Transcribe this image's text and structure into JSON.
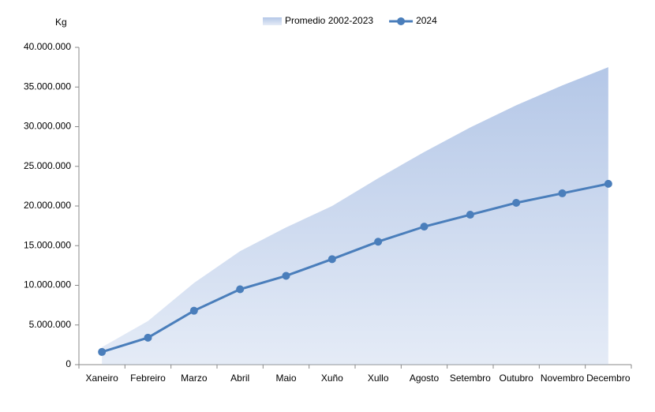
{
  "chart_data": {
    "type": "line",
    "y_label": "Kg",
    "categories": [
      "Xaneiro",
      "Febreiro",
      "Marzo",
      "Abril",
      "Maio",
      "Xuño",
      "Xullo",
      "Agosto",
      "Setembro",
      "Outubro",
      "Novembro",
      "Decembro"
    ],
    "series": [
      {
        "name": "Promedio 2002-2023",
        "type": "area",
        "color": "#b4c7e7",
        "values": [
          2200000,
          5500000,
          10300000,
          14300000,
          17300000,
          20000000,
          23500000,
          26800000,
          29900000,
          32700000,
          35200000,
          37500000
        ]
      },
      {
        "name": "2024",
        "type": "line",
        "color": "#4a7ebb",
        "values": [
          1600000,
          3400000,
          6800000,
          9500000,
          11200000,
          13300000,
          15500000,
          17400000,
          18900000,
          20400000,
          21600000,
          22800000
        ]
      }
    ],
    "ylim": [
      0,
      40000000
    ],
    "yticks": [
      0,
      {
        "value": 5000000,
        "label": "5.000.000"
      },
      {
        "value": 10000000,
        "label": "10.000.000"
      },
      {
        "value": 15000000,
        "label": "15.000.000"
      },
      {
        "value": 20000000,
        "label": "20.000.000"
      },
      {
        "value": 25000000,
        "label": "25.000.000"
      },
      {
        "value": 30000000,
        "label": "30.000.000"
      },
      {
        "value": 35000000,
        "label": "35.000.000"
      },
      {
        "value": 40000000,
        "label": "40.000.000"
      }
    ],
    "legend": "top"
  }
}
